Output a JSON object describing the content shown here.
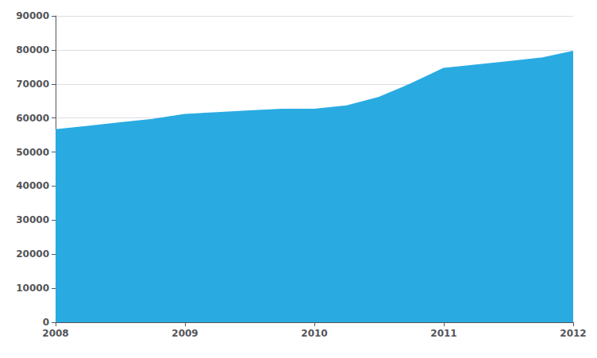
{
  "chart_data": {
    "type": "area",
    "x": [
      2008.0,
      2008.25,
      2008.5,
      2008.75,
      2009.0,
      2009.25,
      2009.5,
      2009.75,
      2010.0,
      2010.25,
      2010.5,
      2010.75,
      2011.0,
      2011.25,
      2011.5,
      2011.75,
      2012.0
    ],
    "values": [
      56500,
      57500,
      58500,
      59500,
      61000,
      61500,
      62000,
      62500,
      62500,
      63500,
      66000,
      70000,
      74500,
      75500,
      76500,
      77500,
      79500
    ],
    "color": "#29ABE2",
    "xlim": [
      2008,
      2012
    ],
    "ylim": [
      0,
      90000
    ],
    "xticks": [
      2008,
      2009,
      2010,
      2011,
      2012
    ],
    "yticks": [
      0,
      10000,
      20000,
      30000,
      40000,
      50000,
      60000,
      70000,
      80000,
      90000
    ],
    "grid": true
  }
}
